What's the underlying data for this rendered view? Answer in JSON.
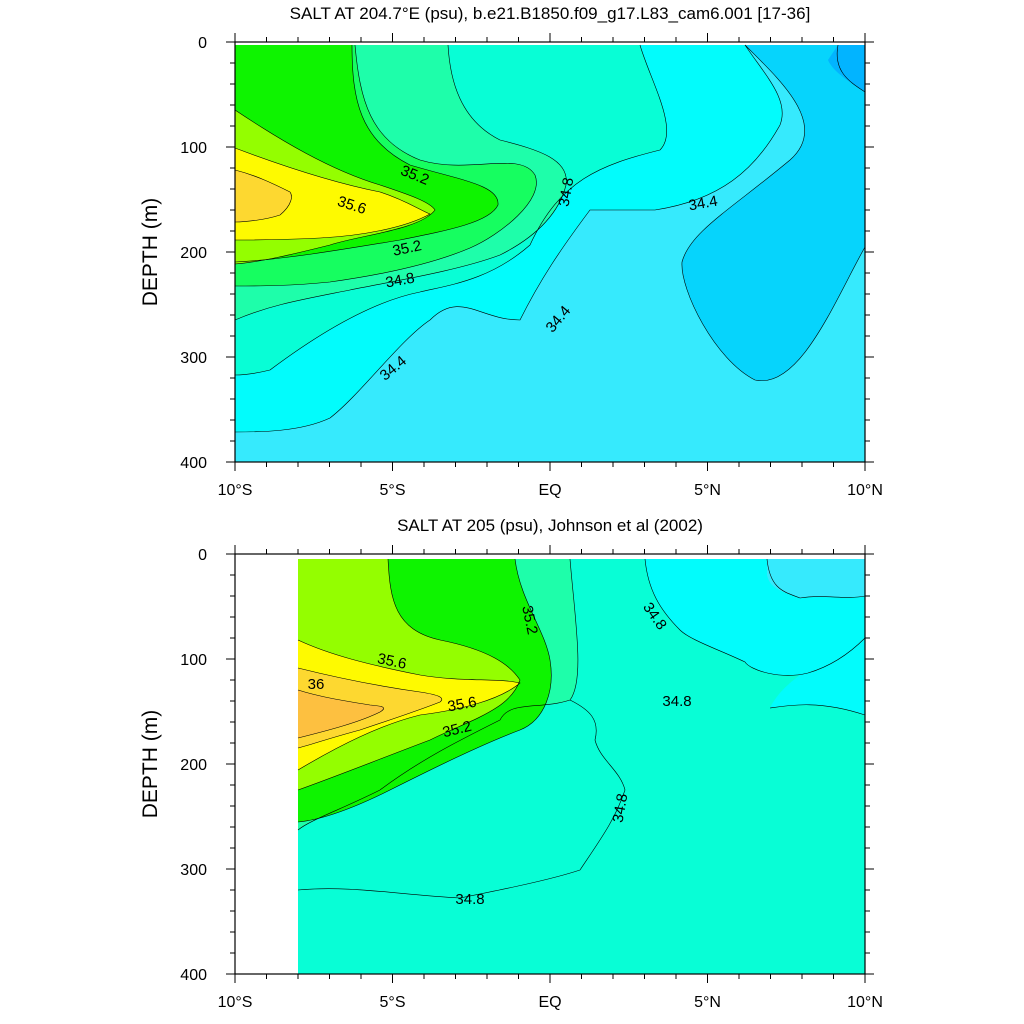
{
  "chart_data": [
    {
      "type": "contour",
      "title": "SALT AT 204.7°E (psu), b.e21.B1850.f09_g17.L83_cam6.001 [17-36]",
      "ylabel": "DEPTH (m)",
      "xlabel": "",
      "xlim": [
        -10,
        10
      ],
      "ylim": [
        0,
        400
      ],
      "y_inverted": true,
      "x_ticks": [
        -10,
        -5,
        0,
        5,
        10
      ],
      "x_tick_labels": [
        "10°S",
        "5°S",
        "EQ",
        "5°N",
        "10°N"
      ],
      "y_ticks": [
        0,
        100,
        200,
        300,
        400
      ],
      "y_tick_labels": [
        "0",
        "100",
        "200",
        "300",
        "400"
      ],
      "levels": [
        34.0,
        34.2,
        34.4,
        34.6,
        34.8,
        35.0,
        35.2,
        35.4,
        35.6,
        35.8
      ],
      "contour_labels": [
        "35.2",
        "35.6",
        "35.2",
        "34.8",
        "34.8",
        "34.4",
        "34.4",
        "34.4"
      ],
      "level_colors": {
        "lt_34.0": "#02B4FF",
        "34.0-34.2": "#06D4FC",
        "34.2-34.4": "#36EAFD",
        "34.4-34.6": "#02FCFC",
        "34.6-34.8": "#08FED6",
        "34.8-35.0": "#1EFEAA",
        "35.0-35.2": "#16FE60",
        "35.2-35.4": "#0EF400",
        "35.4-35.6": "#94FE00",
        "35.6-35.8": "#FEFA00",
        "gt_35.8": "#FDD830"
      },
      "max_salinity_core": {
        "lat": -9,
        "depth": 160,
        "value": 35.8
      }
    },
    {
      "type": "contour",
      "title": "SALT AT 205 (psu), Johnson et al (2002)",
      "ylabel": "DEPTH (m)",
      "xlabel": "",
      "xlim": [
        -10,
        10
      ],
      "ylim": [
        0,
        400
      ],
      "y_inverted": true,
      "data_lat_range": [
        -8,
        10
      ],
      "x_ticks": [
        -10,
        -5,
        0,
        5,
        10
      ],
      "x_tick_labels": [
        "10°S",
        "5°S",
        "EQ",
        "5°N",
        "10°N"
      ],
      "y_ticks": [
        0,
        100,
        200,
        300,
        400
      ],
      "y_tick_labels": [
        "0",
        "100",
        "200",
        "300",
        "400"
      ],
      "levels": [
        34.4,
        34.6,
        34.8,
        35.0,
        35.2,
        35.4,
        35.6,
        35.8,
        36.0
      ],
      "contour_labels": [
        "35.6",
        "36",
        "35.6",
        "35.2",
        "35.2",
        "34.8",
        "34.8",
        "34.8",
        "34.8"
      ],
      "level_colors": {
        "34.4-34.6": "#36EAFD",
        "34.6-34.8": "#02FCFC",
        "34.8-35.0": "#08FED6",
        "35.0-35.2": "#1EFEAA",
        "35.2-35.4": "#0EF400",
        "35.4-35.6": "#94FE00",
        "35.6-35.8": "#FEFA00",
        "35.8-36.0": "#FDD830",
        "gt_36.0": "#FDC040"
      },
      "max_salinity_core": {
        "lat": -7.5,
        "depth": 145,
        "value": 36.0
      }
    }
  ]
}
